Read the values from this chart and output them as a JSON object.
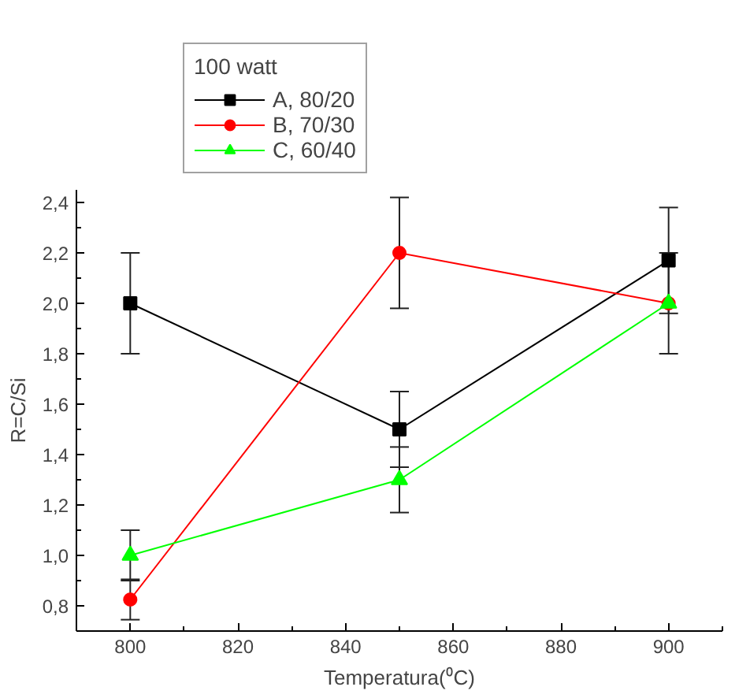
{
  "chart_data": {
    "type": "line",
    "xlabel": "Temperatura(⁰C)",
    "ylabel": "R=C/Si",
    "legend_title": "100 watt",
    "legend": "top left",
    "grid": false,
    "x": [
      800,
      850,
      900
    ],
    "xlim": [
      790,
      910
    ],
    "xticks": [
      800,
      820,
      840,
      860,
      880,
      900
    ],
    "ylim": [
      0.7,
      2.45
    ],
    "yticks": [
      {
        "value": 0.8,
        "label": "0,8"
      },
      {
        "value": 1.0,
        "label": "1,0"
      },
      {
        "value": 1.2,
        "label": "1,2"
      },
      {
        "value": 1.4,
        "label": "1,4"
      },
      {
        "value": 1.6,
        "label": "1,6"
      },
      {
        "value": 1.8,
        "label": "1,8"
      },
      {
        "value": 2.0,
        "label": "2,0"
      },
      {
        "value": 2.2,
        "label": "2,2"
      },
      {
        "value": 2.4,
        "label": "2,4"
      }
    ],
    "series": [
      {
        "name": "A, 80/20",
        "color": "#000000",
        "marker": "square",
        "values": [
          2.0,
          1.5,
          2.17
        ],
        "errors": [
          0.2,
          0.15,
          0.21
        ]
      },
      {
        "name": "B, 70/30",
        "color": "#ff0000",
        "marker": "circle",
        "values": [
          0.825,
          2.2,
          2.0
        ],
        "errors": [
          0.08,
          0.22,
          null
        ]
      },
      {
        "name": "C, 60/40",
        "color": "#00ff00",
        "marker": "triangle",
        "values": [
          1.0,
          1.3,
          2.0
        ],
        "errors": [
          0.1,
          0.13,
          0.2
        ]
      }
    ]
  }
}
